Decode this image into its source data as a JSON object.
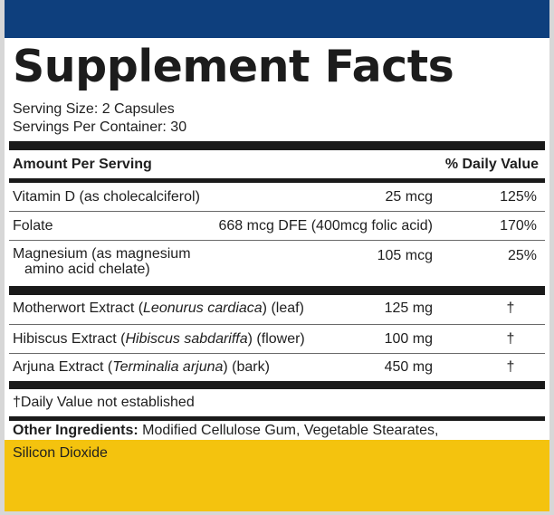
{
  "label": {
    "title": "Supplement Facts",
    "serving_size": "Serving Size: 2 Capsules",
    "servings_per_container": "Servings Per Container: 30",
    "header_amount": "Amount Per Serving",
    "header_dv": "% Daily Value",
    "vitamins": [
      {
        "name": "Vitamin D (as cholecalciferol)",
        "amount": "25 mcg",
        "dv": "125%"
      },
      {
        "name": "Folate",
        "amount": "668 mcg DFE (400mcg folic acid)",
        "dv": "170%"
      },
      {
        "name_line1": "Magnesium (as magnesium",
        "name_line2": "amino acid chelate)",
        "amount": "105 mcg",
        "dv": "25%"
      }
    ],
    "extracts": [
      {
        "name_prefix": "Motherwort Extract (",
        "name_italic": "Leonurus cardiaca",
        "name_suffix": ") (leaf)",
        "amount": "125 mg",
        "dv": "†"
      },
      {
        "name_prefix": "Hibiscus Extract (",
        "name_italic": "Hibiscus sabdariffa",
        "name_suffix": ") (flower)",
        "amount": "100 mg",
        "dv": "†"
      },
      {
        "name_prefix": "Arjuna Extract (",
        "name_italic": "Terminalia arjuna",
        "name_suffix": ") (bark)",
        "amount": "450 mg",
        "dv": "†"
      }
    ],
    "footnote": "†Daily Value not established",
    "other_ingredients_label": "Other Ingredients:",
    "other_ingredients_line1": " Modified Cellulose Gum, Vegetable Stearates,",
    "other_ingredients_line2": "Silicon Dioxide"
  },
  "colors": {
    "top_bar": "#0e3f7d",
    "bottom_band": "#f4c30e",
    "rules": "#1a1a1a"
  }
}
